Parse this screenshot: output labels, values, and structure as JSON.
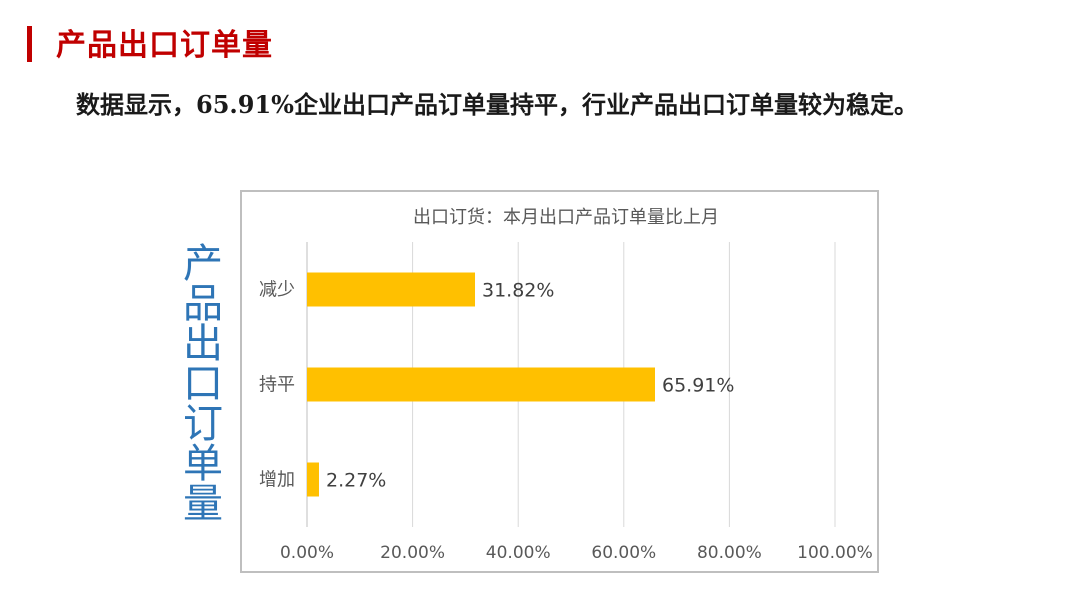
{
  "header": {
    "title": "产品出口订单量"
  },
  "summary": {
    "text": "数据显示，65.91%企业出口产品订单量持平，行业产品出口订单量较为稳定。"
  },
  "side_label": "产品出口订单量",
  "colors": {
    "accent": "#c00000",
    "bar": "#ffc000",
    "side_label": "#2e75b6"
  },
  "chart_data": {
    "type": "bar",
    "orientation": "horizontal",
    "title": "出口订货：本月出口产品订单量比上月",
    "categories": [
      "减少",
      "持平",
      "增加"
    ],
    "values": [
      31.82,
      65.91,
      2.27
    ],
    "value_labels": [
      "31.82%",
      "65.91%",
      "2.27%"
    ],
    "xlim": [
      0,
      100
    ],
    "xticks": [
      0,
      20,
      40,
      60,
      80,
      100
    ],
    "xtick_labels": [
      "0.00%",
      "20.00%",
      "40.00%",
      "60.00%",
      "80.00%",
      "100.00%"
    ],
    "grid": true,
    "legend": "none"
  }
}
